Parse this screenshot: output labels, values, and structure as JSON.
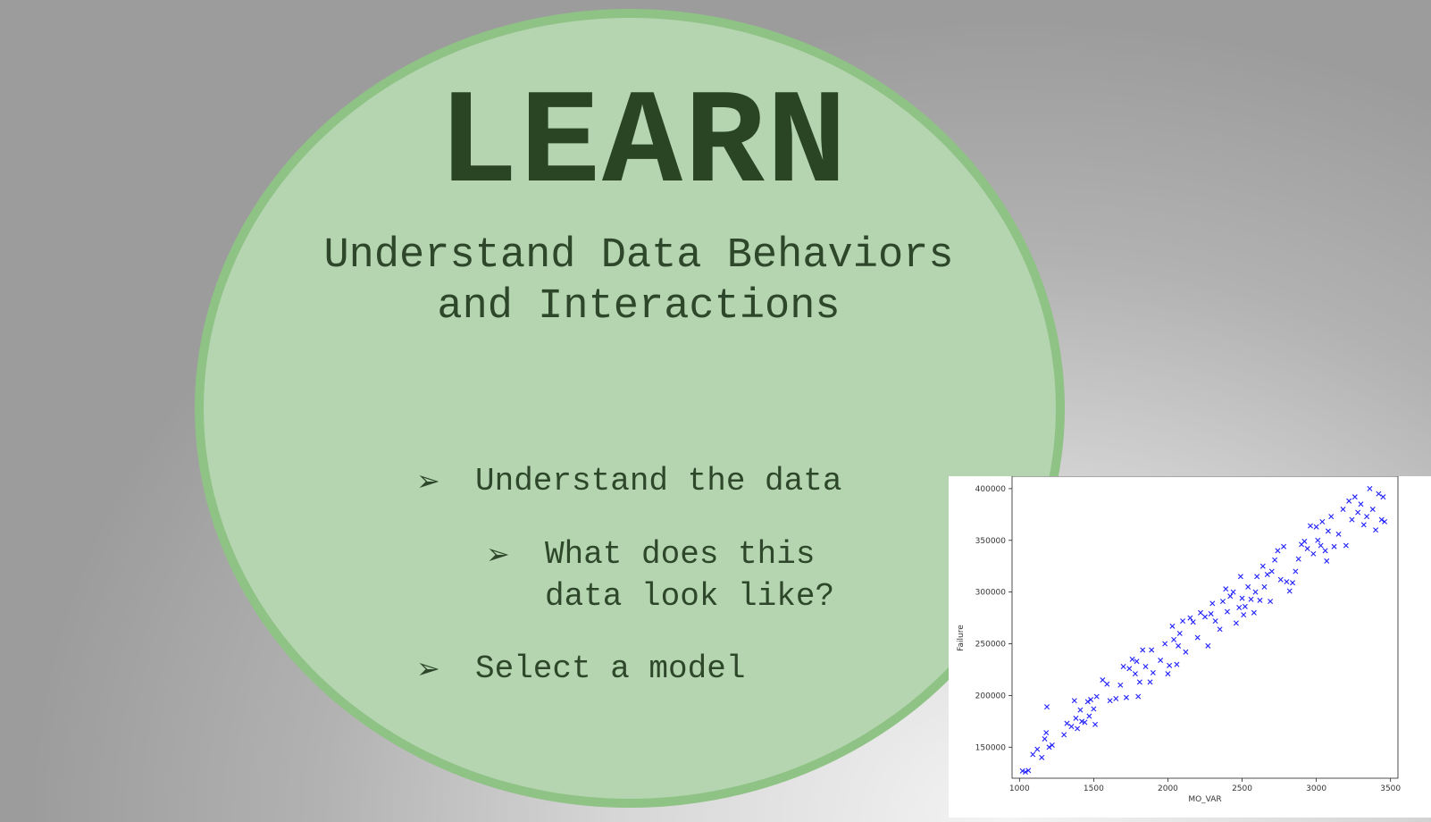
{
  "slide": {
    "title": "LEARN",
    "subtitle": "Understand Data Behaviors and Interactions",
    "bullets": [
      {
        "text": "Understand the data",
        "level": 1
      },
      {
        "text": "What does this\ndata look like?",
        "level": 2
      },
      {
        "text": "Select a model",
        "level": 1
      }
    ],
    "bullet_icon": "arrowhead-icon",
    "colors": {
      "circle_fill": "#b4d5b0",
      "circle_border": "#8fc285",
      "text": "#2e472a",
      "points": "#2020ff"
    }
  },
  "chart_data": {
    "type": "scatter",
    "xlabel": "MO_VAR",
    "ylabel": "Failure",
    "xlim": [
      950,
      3550
    ],
    "ylim": [
      120000,
      412000
    ],
    "x_ticks": [
      "1000",
      "1500",
      "2000",
      "2500",
      "3000",
      "3500"
    ],
    "y_ticks": [
      "150000",
      "200000",
      "250000",
      "300000",
      "350000",
      "400000"
    ],
    "marker": "x",
    "grid": false,
    "points": [
      [
        1020,
        127000
      ],
      [
        1040,
        126000
      ],
      [
        1060,
        127500
      ],
      [
        1090,
        143000
      ],
      [
        1120,
        148000
      ],
      [
        1150,
        140000
      ],
      [
        1170,
        158000
      ],
      [
        1180,
        164000
      ],
      [
        1185,
        189000
      ],
      [
        1200,
        150000
      ],
      [
        1220,
        152000
      ],
      [
        1300,
        162000
      ],
      [
        1320,
        173000
      ],
      [
        1350,
        170000
      ],
      [
        1370,
        195000
      ],
      [
        1380,
        178000
      ],
      [
        1390,
        168000
      ],
      [
        1410,
        186000
      ],
      [
        1420,
        175000
      ],
      [
        1440,
        174000
      ],
      [
        1460,
        194000
      ],
      [
        1470,
        180000
      ],
      [
        1480,
        196000
      ],
      [
        1500,
        187000
      ],
      [
        1510,
        172000
      ],
      [
        1520,
        199000
      ],
      [
        1560,
        215000
      ],
      [
        1590,
        211000
      ],
      [
        1610,
        195000
      ],
      [
        1650,
        197000
      ],
      [
        1680,
        210000
      ],
      [
        1700,
        228000
      ],
      [
        1720,
        198000
      ],
      [
        1740,
        226000
      ],
      [
        1760,
        235000
      ],
      [
        1780,
        221000
      ],
      [
        1790,
        233000
      ],
      [
        1800,
        199000
      ],
      [
        1810,
        213000
      ],
      [
        1830,
        244000
      ],
      [
        1850,
        228000
      ],
      [
        1880,
        213000
      ],
      [
        1890,
        244000
      ],
      [
        1900,
        222000
      ],
      [
        1950,
        234000
      ],
      [
        1980,
        250000
      ],
      [
        2000,
        221000
      ],
      [
        2010,
        229000
      ],
      [
        2030,
        267000
      ],
      [
        2040,
        254000
      ],
      [
        2060,
        230000
      ],
      [
        2070,
        248000
      ],
      [
        2080,
        260000
      ],
      [
        2100,
        272000
      ],
      [
        2120,
        242000
      ],
      [
        2150,
        275000
      ],
      [
        2170,
        271000
      ],
      [
        2200,
        256000
      ],
      [
        2220,
        280000
      ],
      [
        2250,
        276000
      ],
      [
        2270,
        248000
      ],
      [
        2290,
        279000
      ],
      [
        2300,
        289000
      ],
      [
        2320,
        272000
      ],
      [
        2350,
        264000
      ],
      [
        2370,
        291000
      ],
      [
        2390,
        303000
      ],
      [
        2400,
        281000
      ],
      [
        2420,
        296000
      ],
      [
        2440,
        300000
      ],
      [
        2460,
        270000
      ],
      [
        2480,
        285000
      ],
      [
        2490,
        315000
      ],
      [
        2500,
        294000
      ],
      [
        2510,
        278000
      ],
      [
        2520,
        286000
      ],
      [
        2540,
        305000
      ],
      [
        2560,
        293000
      ],
      [
        2580,
        280000
      ],
      [
        2590,
        300000
      ],
      [
        2600,
        315000
      ],
      [
        2620,
        292000
      ],
      [
        2640,
        325000
      ],
      [
        2650,
        305000
      ],
      [
        2670,
        317000
      ],
      [
        2690,
        291000
      ],
      [
        2700,
        320000
      ],
      [
        2720,
        331000
      ],
      [
        2740,
        340000
      ],
      [
        2760,
        312000
      ],
      [
        2780,
        344000
      ],
      [
        2800,
        310000
      ],
      [
        2820,
        301000
      ],
      [
        2840,
        309000
      ],
      [
        2860,
        320000
      ],
      [
        2880,
        332000
      ],
      [
        2900,
        346000
      ],
      [
        2920,
        349000
      ],
      [
        2940,
        342000
      ],
      [
        2960,
        364000
      ],
      [
        2980,
        337000
      ],
      [
        3000,
        363000
      ],
      [
        3010,
        350000
      ],
      [
        3030,
        345000
      ],
      [
        3040,
        368000
      ],
      [
        3060,
        340000
      ],
      [
        3070,
        330000
      ],
      [
        3080,
        359000
      ],
      [
        3100,
        373000
      ],
      [
        3120,
        344000
      ],
      [
        3150,
        356000
      ],
      [
        3180,
        380000
      ],
      [
        3200,
        345000
      ],
      [
        3220,
        388000
      ],
      [
        3240,
        370000
      ],
      [
        3260,
        392000
      ],
      [
        3280,
        377000
      ],
      [
        3300,
        385000
      ],
      [
        3320,
        365000
      ],
      [
        3340,
        373000
      ],
      [
        3360,
        400000
      ],
      [
        3380,
        380000
      ],
      [
        3400,
        360000
      ],
      [
        3420,
        395000
      ],
      [
        3440,
        370000
      ],
      [
        3450,
        392000
      ],
      [
        3460,
        368000
      ]
    ]
  }
}
